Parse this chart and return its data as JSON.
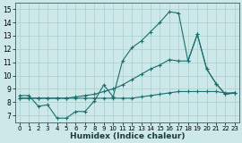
{
  "xlabel": "Humidex (Indice chaleur)",
  "background_color": "#cde8e8",
  "line_color": "#1a6e6e",
  "grid_color": "#aacece",
  "xlim": [
    -0.5,
    23.5
  ],
  "ylim": [
    6.5,
    15.5
  ],
  "xticks": [
    0,
    1,
    2,
    3,
    4,
    5,
    6,
    7,
    8,
    9,
    10,
    11,
    12,
    13,
    14,
    15,
    16,
    17,
    18,
    19,
    20,
    21,
    22,
    23
  ],
  "yticks": [
    7,
    8,
    9,
    10,
    11,
    12,
    13,
    14,
    15
  ],
  "line1_y": [
    8.5,
    8.5,
    7.7,
    7.8,
    6.8,
    6.8,
    7.3,
    7.3,
    8.1,
    9.3,
    8.4,
    11.1,
    12.1,
    12.6,
    13.3,
    14.0,
    14.8,
    14.7,
    11.1,
    13.1,
    10.5,
    9.4,
    8.6,
    8.7
  ],
  "line2_y": [
    8.3,
    8.3,
    8.3,
    8.3,
    8.3,
    8.3,
    8.4,
    8.5,
    8.6,
    8.8,
    9.0,
    9.3,
    9.7,
    10.1,
    10.5,
    10.8,
    11.2,
    11.1,
    11.1,
    13.1,
    10.5,
    9.4,
    8.6,
    8.7
  ],
  "line3_y": [
    8.3,
    8.3,
    8.3,
    8.3,
    8.3,
    8.3,
    8.3,
    8.3,
    8.3,
    8.3,
    8.3,
    8.3,
    8.3,
    8.4,
    8.5,
    8.6,
    8.7,
    8.8,
    8.8,
    8.8,
    8.8,
    8.8,
    8.7,
    8.7
  ]
}
